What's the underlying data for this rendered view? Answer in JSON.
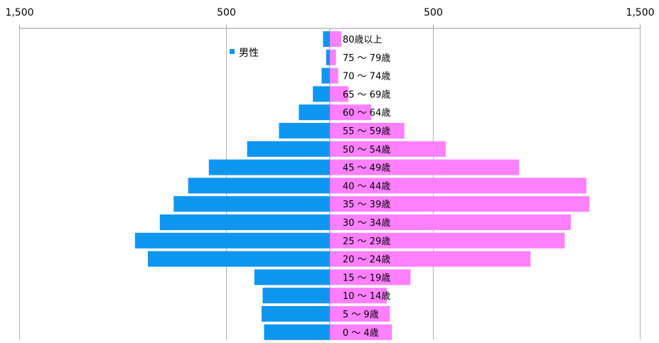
{
  "chart_data": {
    "type": "bar",
    "orientation": "horizontal-population-pyramid",
    "categories": [
      "80歳以上",
      "75 ～ 79歳",
      "70 ～ 74歳",
      "65 ～ 69歳",
      "60 ～ 64歳",
      "55 ～ 59歳",
      "50 ～ 54歳",
      "45 ～ 49歳",
      "40 ～ 44歳",
      "35 ～ 39歳",
      "30 ～ 34歳",
      "25 ～ 29歳",
      "20 ～ 24歳",
      "15 ～ 19歳",
      "10 ～ 14歳",
      "5 ～ 9歳",
      "0 ～ 4歳"
    ],
    "series": [
      {
        "name": "男性",
        "side": "left",
        "color": "#0d96f0",
        "values": [
          33,
          18,
          40,
          82,
          150,
          246,
          400,
          585,
          685,
          755,
          822,
          942,
          880,
          365,
          325,
          330,
          318
        ]
      },
      {
        "name": "",
        "side": "right",
        "color": "#ff80ff",
        "values": [
          55,
          30,
          40,
          90,
          200,
          360,
          560,
          915,
          1240,
          1255,
          1165,
          1135,
          970,
          390,
          275,
          290,
          300
        ]
      }
    ],
    "x_tick_labels": [
      "1,500",
      "500",
      "500",
      "1,500"
    ],
    "x_ticks": [
      -1500,
      -500,
      500,
      1500
    ],
    "xlim": [
      -1500,
      1500
    ],
    "legend_position": "top-left",
    "grid": true
  }
}
